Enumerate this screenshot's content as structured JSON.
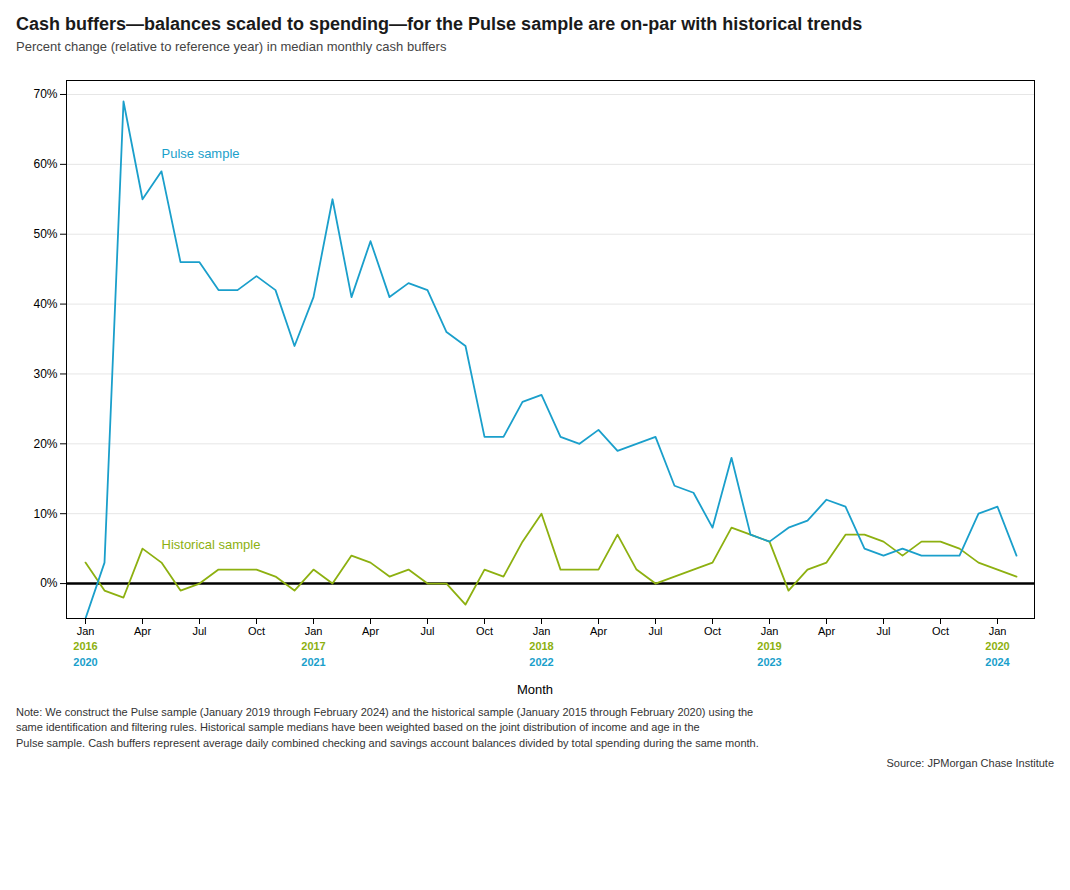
{
  "chart_data": {
    "type": "line",
    "title": "Cash buffers—balances scaled to spending—for the Pulse sample are on-par with historical trends",
    "subtitle": "Percent change (relative to reference year) in median monthly cash buffers",
    "xlabel": "Month",
    "note": "Note: We construct the Pulse sample (January 2019 through February 2024) and the historical sample (January 2015 through February 2020) using the\nsame identification and filtering rules. Historical sample medians have been weighted based on the joint distribution of income and age in the\nPulse sample. Cash buffers represent average daily combined checking and savings account balances divided by total spending during the same month.",
    "source": "Source: JPMorgan Chase Institute",
    "categories": [
      "Jan",
      null,
      null,
      "Apr",
      null,
      null,
      "Jul",
      null,
      null,
      "Oct",
      null,
      null,
      "Jan",
      null,
      null,
      "Apr",
      null,
      null,
      "Jul",
      null,
      null,
      "Oct",
      null,
      null,
      "Jan",
      null,
      null,
      "Apr",
      null,
      null,
      "Jul",
      null,
      null,
      "Oct",
      null,
      null,
      "Jan",
      null,
      null,
      "Apr",
      null,
      null,
      "Jul",
      null,
      null,
      "Oct",
      null,
      null,
      "Jan",
      null
    ],
    "series": [
      {
        "name": "Historical sample",
        "color": "#8db010",
        "values": [
          3,
          -1,
          -2,
          5,
          3,
          -1,
          0,
          2,
          2,
          2,
          1,
          -1,
          2,
          0,
          4,
          3,
          1,
          2,
          0,
          0,
          -3,
          2,
          1,
          6,
          10,
          2,
          2,
          2,
          7,
          2,
          0,
          1,
          2,
          3,
          8,
          7,
          6,
          -1,
          2,
          3,
          7,
          7,
          6,
          4,
          6,
          6,
          5,
          3,
          2,
          1
        ],
        "year_labels": [
          "2016",
          null,
          null,
          null,
          null,
          null,
          null,
          null,
          null,
          null,
          null,
          null,
          "2017",
          null,
          null,
          null,
          null,
          null,
          null,
          null,
          null,
          null,
          null,
          null,
          "2018",
          null,
          null,
          null,
          null,
          null,
          null,
          null,
          null,
          null,
          null,
          null,
          "2019",
          null,
          null,
          null,
          null,
          null,
          null,
          null,
          null,
          null,
          null,
          null,
          "2020",
          null
        ]
      },
      {
        "name": "Pulse sample",
        "color": "#1a9fcb",
        "values": [
          -5,
          3,
          69,
          55,
          59,
          46,
          46,
          42,
          42,
          44,
          42,
          34,
          41,
          55,
          41,
          49,
          41,
          43,
          42,
          36,
          34,
          21,
          21,
          26,
          27,
          21,
          20,
          22,
          19,
          20,
          21,
          14,
          13,
          8,
          18,
          7,
          6,
          8,
          9,
          12,
          11,
          5,
          4,
          5,
          4,
          4,
          4,
          10,
          11,
          4
        ],
        "year_labels": [
          "2020",
          null,
          null,
          null,
          null,
          null,
          null,
          null,
          null,
          null,
          null,
          null,
          "2021",
          null,
          null,
          null,
          null,
          null,
          null,
          null,
          null,
          null,
          null,
          null,
          "2022",
          null,
          null,
          null,
          null,
          null,
          null,
          null,
          null,
          null,
          null,
          null,
          "2023",
          null,
          null,
          null,
          null,
          null,
          null,
          null,
          null,
          null,
          null,
          null,
          "2024",
          null
        ]
      }
    ],
    "ylim": [
      -5,
      72
    ],
    "yticks": [
      {
        "value": 0,
        "label": "0%"
      },
      {
        "value": 10,
        "label": "10%"
      },
      {
        "value": 20,
        "label": "20%"
      },
      {
        "value": 30,
        "label": "30%"
      },
      {
        "value": 40,
        "label": "40%"
      },
      {
        "value": 50,
        "label": "50%"
      },
      {
        "value": 60,
        "label": "60%"
      },
      {
        "value": 70,
        "label": "70%"
      }
    ],
    "grid": true,
    "reference_lines": [
      {
        "value": 0,
        "color": "#000000"
      }
    ]
  }
}
